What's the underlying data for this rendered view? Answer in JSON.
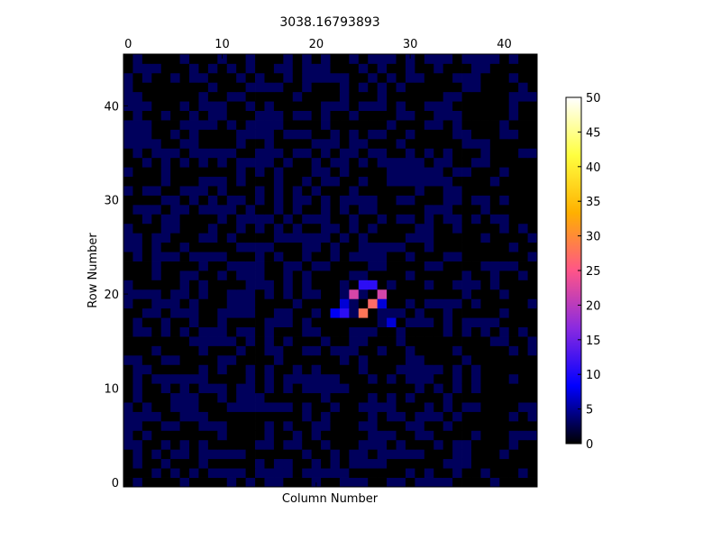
{
  "chart_data": {
    "type": "heatmap",
    "title": "3038.16793893",
    "xlabel": "Column Number",
    "ylabel": "Row Number",
    "x_axis_position": "top",
    "y_origin": "bottom",
    "n_columns": 44,
    "n_rows": 46,
    "xlim": [
      -0.5,
      43.5
    ],
    "ylim": [
      -0.5,
      45.5
    ],
    "x_ticks": [
      0,
      10,
      20,
      30,
      40
    ],
    "y_ticks": [
      0,
      10,
      20,
      30,
      40
    ],
    "colorbar": {
      "min": 0,
      "max": 50,
      "ticks": [
        0,
        5,
        10,
        15,
        20,
        25,
        30,
        35,
        40,
        45,
        50
      ],
      "colormap": "gnuplot2",
      "stops": [
        "#000000",
        "#0000ff",
        "#8a2ae0",
        "#ff5588",
        "#ffb000",
        "#ffff40",
        "#ffffff"
      ]
    },
    "grid": false,
    "bright_cells": [
      {
        "col": 25,
        "row": 21,
        "value": 11
      },
      {
        "col": 26,
        "row": 21,
        "value": 11
      },
      {
        "col": 24,
        "row": 20,
        "value": 22
      },
      {
        "col": 27,
        "row": 20,
        "value": 22
      },
      {
        "col": 23,
        "row": 19,
        "value": 7
      },
      {
        "col": 26,
        "row": 19,
        "value": 27
      },
      {
        "col": 27,
        "row": 19,
        "value": 7
      },
      {
        "col": 22,
        "row": 18,
        "value": 8
      },
      {
        "col": 23,
        "row": 18,
        "value": 11
      },
      {
        "col": 25,
        "row": 18,
        "value": 28
      },
      {
        "col": 28,
        "row": 17,
        "value": 7
      }
    ],
    "background_value": 3,
    "background_fill_fraction": 0.45
  }
}
